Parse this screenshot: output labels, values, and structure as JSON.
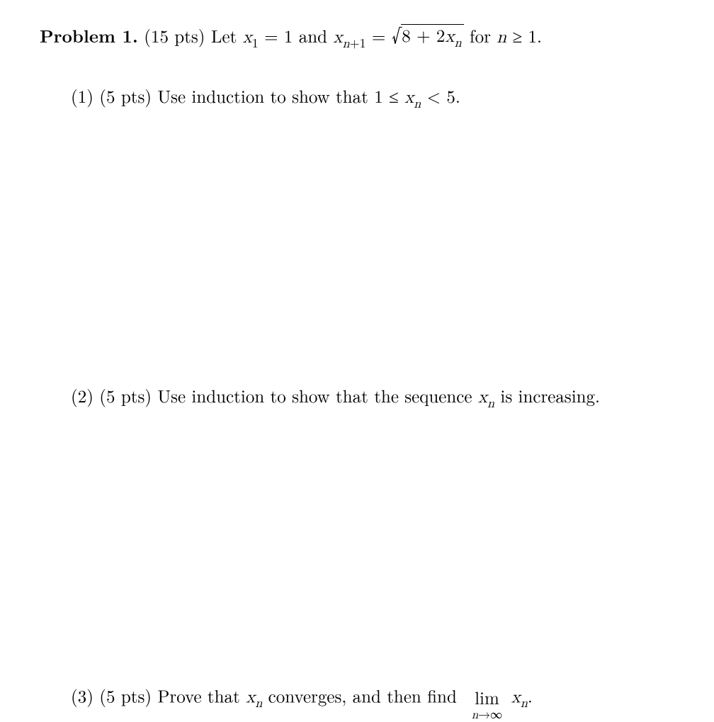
{
  "text_color": "#000000",
  "background_color": "#ffffff",
  "header": {
    "label": "Problem 1.",
    "points": "(15 pts)",
    "pre": "Let ",
    "eq1_lhs_var": "x",
    "eq1_lhs_sub": "1",
    "eq1_eq": " = 1",
    "and": " and ",
    "eq2_lhs_var": "x",
    "eq2_lhs_sub_var": "n",
    "eq2_lhs_sub_plus": "+1",
    "eq2_eq": " = ",
    "sqrt_body_a": "8 + 2",
    "sqrt_body_var": "x",
    "sqrt_body_sub": "n",
    "for": " for ",
    "cond_var": "n",
    "cond_rel": " ≥ 1."
  },
  "part1": {
    "num": "(1)",
    "pts": "(5 pts)",
    "text_a": "Use induction to show that 1 ≤ ",
    "var": "x",
    "sub": "n",
    "text_b": " < 5."
  },
  "part2": {
    "num": "(2)",
    "pts": "(5 pts)",
    "text_a": "Use induction to show that the sequence ",
    "var": "x",
    "sub": "n",
    "text_b": " is increasing."
  },
  "part3": {
    "num": "(3)",
    "pts": "(5 pts)",
    "text_a": "Prove that ",
    "var1": "x",
    "sub1": "n",
    "text_b": " converges, and then find ",
    "lim": "lim",
    "lim_sub_var": "n",
    "lim_sub_arrow": "→∞",
    "var2": "x",
    "sub2": "n",
    "period": "."
  }
}
